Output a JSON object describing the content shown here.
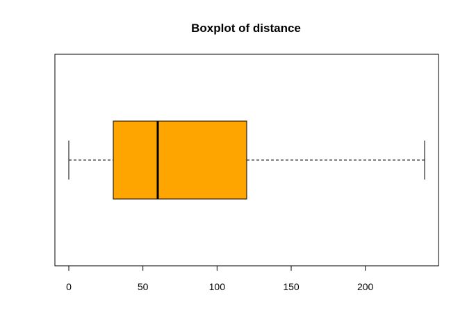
{
  "chart_data": {
    "type": "boxplot",
    "orientation": "horizontal",
    "title": "Boxplot of distance",
    "variable": "distance",
    "stats": {
      "whisker_low": 0,
      "q1": 30,
      "median": 60,
      "q3": 120,
      "whisker_high": 240
    },
    "box_color": "#FFA500",
    "x_ticks": [
      0,
      50,
      100,
      150,
      200
    ],
    "xlim": [
      -10,
      250
    ]
  }
}
